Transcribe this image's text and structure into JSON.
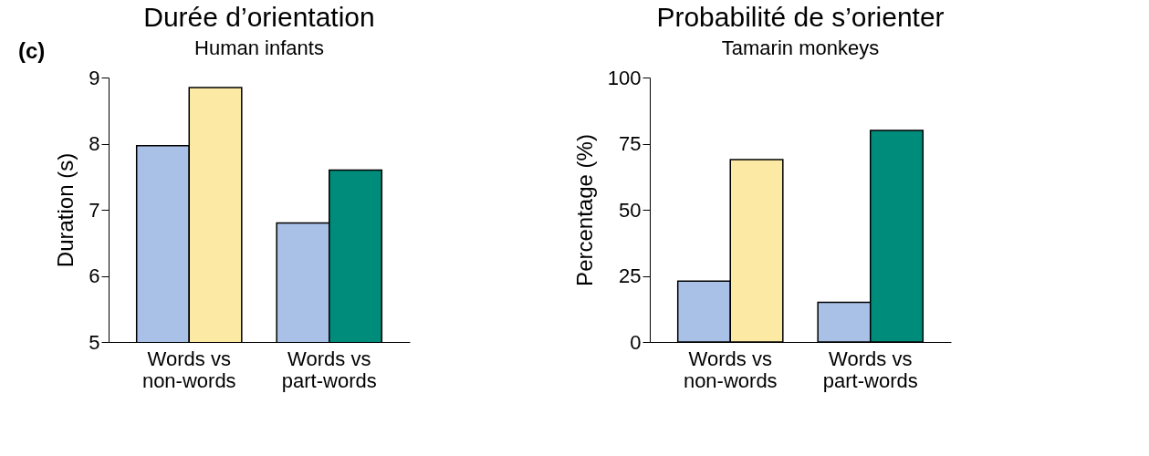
{
  "chart_data": [
    {
      "type": "bar",
      "title": "Durée d’orientation",
      "subtitle": "Human infants",
      "ylabel": "Duration (s)",
      "annotations": [
        "(c)"
      ],
      "categories": [
        "Words vs non-words",
        "Words vs part-words"
      ],
      "series": [
        {
          "color": "#a9c1e6",
          "values": [
            7.97,
            6.8
          ]
        },
        {
          "colors": [
            "#fbe9a4",
            "#008c7a"
          ],
          "values": [
            8.85,
            7.6
          ]
        }
      ],
      "ylim": [
        5,
        9
      ],
      "yticks": [
        5,
        6,
        7,
        8,
        9
      ],
      "grid": false
    },
    {
      "type": "bar",
      "title": "Probabilité de s’orienter",
      "subtitle": "Tamarin monkeys",
      "ylabel": "Percentage (%)",
      "categories": [
        "Words vs non-words",
        "Words vs part-words"
      ],
      "series": [
        {
          "color": "#a9c1e6",
          "values": [
            23,
            15
          ]
        },
        {
          "colors": [
            "#fbe9a4",
            "#008c7a"
          ],
          "values": [
            69,
            80
          ]
        }
      ],
      "ylim": [
        0,
        100
      ],
      "yticks": [
        0,
        25,
        50,
        75,
        100
      ],
      "grid": false
    }
  ]
}
